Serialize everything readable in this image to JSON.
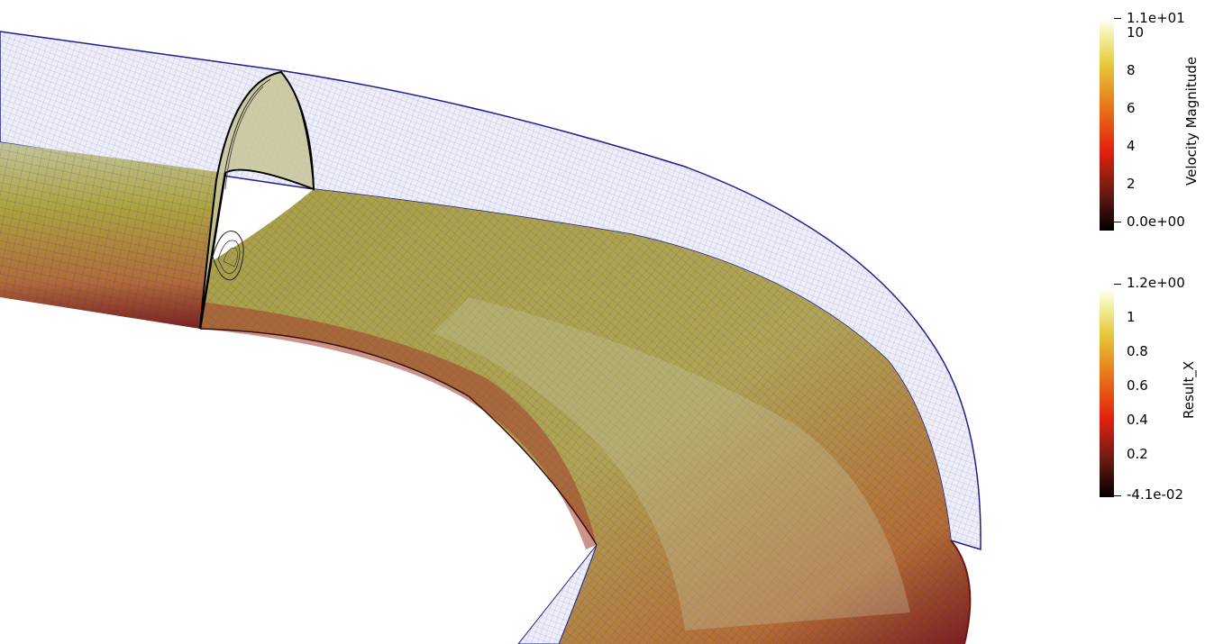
{
  "colorbars": [
    {
      "title": "Velocity Magnitude",
      "max_label": "1.1e+01",
      "min_label": "0.0e+00",
      "ticks": [
        "10",
        "8",
        "6",
        "4",
        "2"
      ],
      "range": [
        0,
        11
      ],
      "tick_values": [
        10,
        8,
        6,
        4,
        2
      ]
    },
    {
      "title": "Result_X",
      "max_label": "1.2e+00",
      "min_label": "-4.1e-02",
      "ticks": [
        "1",
        "0.8",
        "0.6",
        "0.4",
        "0.2"
      ],
      "range": [
        -0.041,
        1.2
      ],
      "tick_values": [
        1,
        0.8,
        0.6,
        0.4,
        0.2
      ]
    }
  ],
  "colormap": {
    "name": "Black-Body Radiation",
    "stops": [
      "#000000",
      "#6b1a14",
      "#e2230f",
      "#e8751a",
      "#e6c83a",
      "#f4f4b0",
      "#ffffff"
    ]
  },
  "mesh_colors": {
    "wireframe": "#1e1e8c",
    "surface_dark": "#8a1e1e",
    "surface_mid": "#b0a032",
    "surface_light": "#c8c8a0",
    "slice_outline": "#000000"
  }
}
